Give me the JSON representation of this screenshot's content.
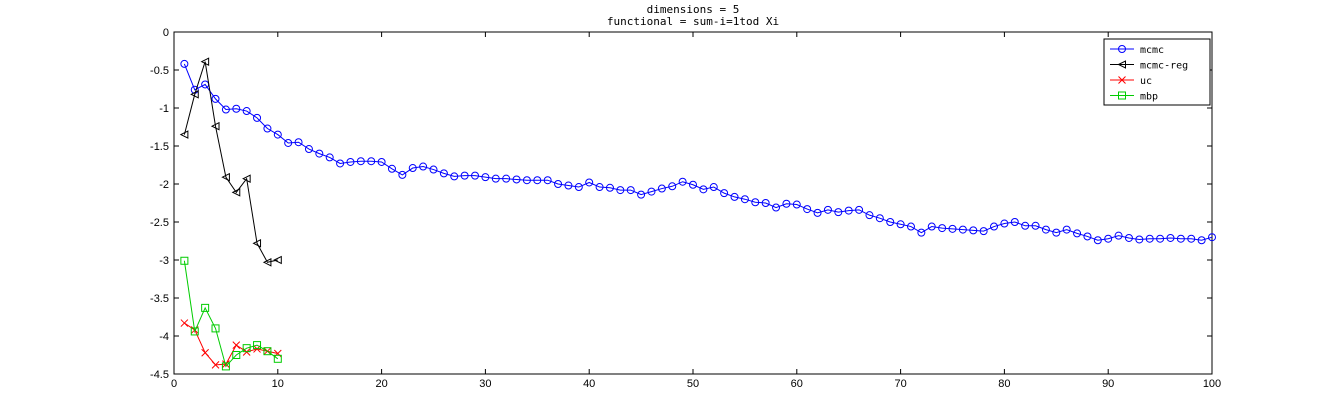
{
  "chart_data": {
    "type": "line",
    "title": [
      "dimensions = 5",
      "functional = sum-i=1tod Xi"
    ],
    "xlabel": "",
    "ylabel": "",
    "xlim": [
      0,
      100
    ],
    "ylim": [
      -4.5,
      0
    ],
    "x_ticks": [
      0,
      10,
      20,
      30,
      40,
      50,
      60,
      70,
      80,
      90,
      100
    ],
    "y_ticks": [
      0,
      -0.5,
      -1,
      -1.5,
      -2,
      -2.5,
      -3,
      -3.5,
      -4,
      -4.5
    ],
    "x_tick_labels": [
      "0",
      "10",
      "20",
      "30",
      "40",
      "50",
      "60",
      "70",
      "80",
      "90",
      "100"
    ],
    "y_tick_labels": [
      "0",
      "-0.5",
      "-1",
      "-1.5",
      "-2",
      "-2.5",
      "-3",
      "-3.5",
      "-4",
      "-4.5"
    ],
    "grid": false,
    "legend_position": "top-right",
    "series": [
      {
        "name": "mcmc",
        "color": "#0000ff",
        "marker": "circle",
        "x": [
          1,
          2,
          3,
          4,
          5,
          6,
          7,
          8,
          9,
          10,
          11,
          12,
          13,
          14,
          15,
          16,
          17,
          18,
          19,
          20,
          21,
          22,
          23,
          24,
          25,
          26,
          27,
          28,
          29,
          30,
          31,
          32,
          33,
          34,
          35,
          36,
          37,
          38,
          39,
          40,
          41,
          42,
          43,
          44,
          45,
          46,
          47,
          48,
          49,
          50,
          51,
          52,
          53,
          54,
          55,
          56,
          57,
          58,
          59,
          60,
          61,
          62,
          63,
          64,
          65,
          66,
          67,
          68,
          69,
          70,
          71,
          72,
          73,
          74,
          75,
          76,
          77,
          78,
          79,
          80,
          81,
          82,
          83,
          84,
          85,
          86,
          87,
          88,
          89,
          90,
          91,
          92,
          93,
          94,
          95,
          96,
          97,
          98,
          99,
          100
        ],
        "y": [
          -0.42,
          -0.76,
          -0.69,
          -0.88,
          -1.02,
          -1.01,
          -1.04,
          -1.13,
          -1.27,
          -1.35,
          -1.46,
          -1.45,
          -1.54,
          -1.6,
          -1.65,
          -1.73,
          -1.71,
          -1.7,
          -1.7,
          -1.71,
          -1.8,
          -1.88,
          -1.79,
          -1.77,
          -1.81,
          -1.86,
          -1.9,
          -1.89,
          -1.89,
          -1.91,
          -1.93,
          -1.93,
          -1.94,
          -1.95,
          -1.95,
          -1.95,
          -2.0,
          -2.02,
          -2.04,
          -1.98,
          -2.04,
          -2.05,
          -2.08,
          -2.08,
          -2.14,
          -2.1,
          -2.06,
          -2.03,
          -1.97,
          -2.01,
          -2.07,
          -2.04,
          -2.12,
          -2.17,
          -2.2,
          -2.24,
          -2.25,
          -2.31,
          -2.26,
          -2.27,
          -2.33,
          -2.38,
          -2.34,
          -2.37,
          -2.35,
          -2.34,
          -2.41,
          -2.45,
          -2.5,
          -2.53,
          -2.56,
          -2.64,
          -2.56,
          -2.58,
          -2.59,
          -2.6,
          -2.61,
          -2.62,
          -2.56,
          -2.52,
          -2.5,
          -2.55,
          -2.55,
          -2.6,
          -2.64,
          -2.6,
          -2.65,
          -2.69,
          -2.74,
          -2.72,
          -2.68,
          -2.71,
          -2.73,
          -2.72,
          -2.72,
          -2.71,
          -2.72,
          -2.72,
          -2.74,
          -2.7
        ]
      },
      {
        "name": "mcmc-reg",
        "color": "#000000",
        "marker": "triangle-left",
        "x": [
          1,
          2,
          3,
          4,
          5,
          6,
          7,
          8,
          9,
          10
        ],
        "y": [
          -1.35,
          -0.82,
          -0.39,
          -1.24,
          -1.91,
          -2.11,
          -1.93,
          -2.78,
          -3.03,
          -3.0
        ]
      },
      {
        "name": "uc",
        "color": "#ff0000",
        "marker": "x",
        "x": [
          1,
          2,
          3,
          4,
          5,
          6,
          7,
          8,
          9,
          10
        ],
        "y": [
          -3.83,
          -3.92,
          -4.22,
          -4.38,
          -4.37,
          -4.12,
          -4.21,
          -4.17,
          -4.2,
          -4.23
        ]
      },
      {
        "name": "mbp",
        "color": "#00cc00",
        "marker": "square",
        "x": [
          1,
          2,
          3,
          4,
          5,
          6,
          7,
          8,
          9,
          10
        ],
        "y": [
          -3.01,
          -3.94,
          -3.63,
          -3.9,
          -4.4,
          -4.25,
          -4.16,
          -4.12,
          -4.2,
          -4.3
        ]
      }
    ]
  }
}
